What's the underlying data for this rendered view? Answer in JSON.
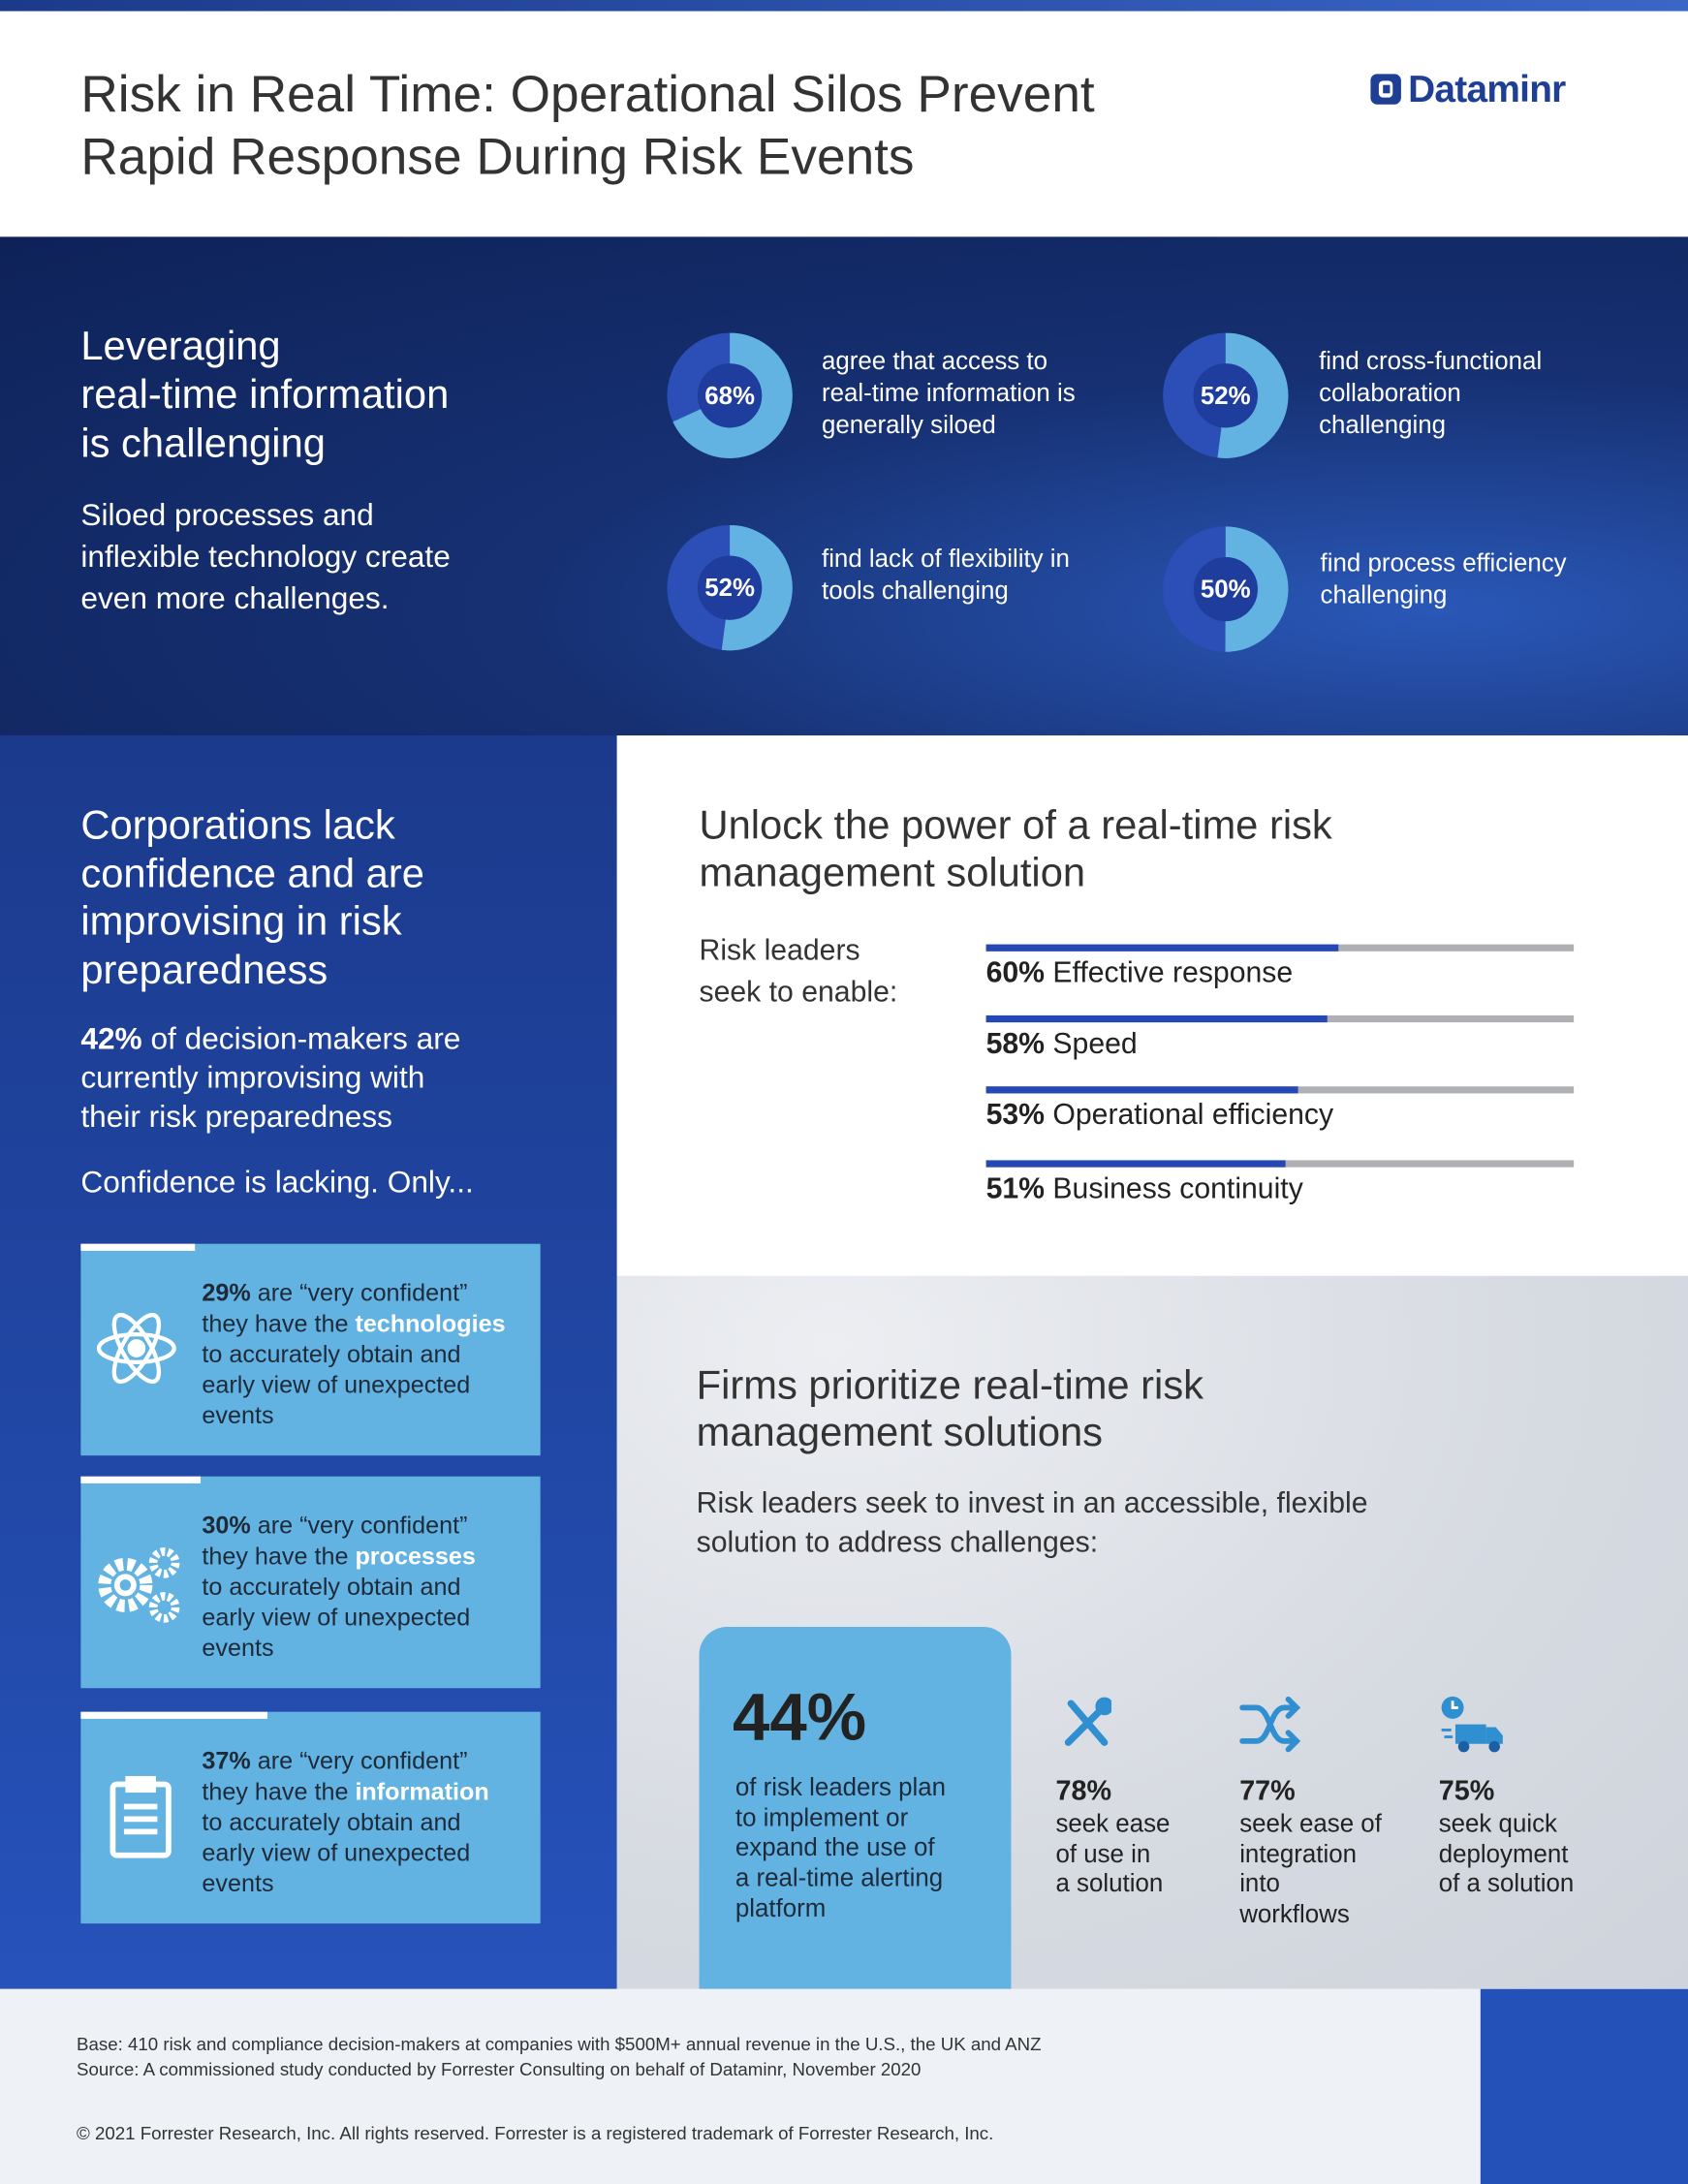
{
  "header": {
    "title": [
      "Risk in Real Time: Operational Silos Prevent",
      "Rapid Response During Risk Events"
    ],
    "logo": "Dataminr"
  },
  "intro": {
    "heading": [
      "Leveraging",
      "real-time information",
      "is challenging"
    ],
    "text": [
      "Siloed processes and",
      "inflexible technology create",
      "even more challenges."
    ],
    "stats": [
      {
        "value": 68,
        "label": "68%",
        "text": [
          "agree that access to",
          "real-time information is",
          "generally siloed"
        ]
      },
      {
        "value": 52,
        "label": "52%",
        "text": [
          "find cross-functional",
          "collaboration",
          "challenging"
        ]
      },
      {
        "value": 52,
        "label": "52%",
        "text": [
          "find lack of flexibility in",
          "tools challenging"
        ]
      },
      {
        "value": 50,
        "label": "50%",
        "text": [
          "find process efficiency",
          "challenging"
        ]
      }
    ]
  },
  "confidence": {
    "heading": [
      "Corporations lack",
      "confidence and are",
      "improvising in risk",
      "preparedness"
    ],
    "highlight": "42%",
    "text": [
      "of decision-makers are",
      "currently improvising with",
      "their risk preparedness"
    ],
    "lead": "Confidence is lacking. Only...",
    "cards": [
      {
        "value": "29%",
        "lines": [
          "are “very confident”",
          "they have the",
          "to accurately obtain and",
          "early view of unexpected",
          "events"
        ],
        "keyword": "technologies"
      },
      {
        "value": "30%",
        "lines": [
          "are “very confident”",
          "they have the",
          "to accurately obtain and",
          "early view of unexpected",
          "events"
        ],
        "keyword": "processes"
      },
      {
        "value": "37%",
        "lines": [
          "are “very confident”",
          "they have the",
          "to accurately obtain and",
          "early view of unexpected",
          "events"
        ],
        "keyword": "information"
      }
    ]
  },
  "unlock": {
    "heading": [
      "Unlock the power of a real-time risk",
      "management solution"
    ],
    "intro": [
      "Risk leaders",
      "seek to enable:"
    ],
    "bars": [
      {
        "value": 60,
        "label": "60%",
        "text": "Effective response"
      },
      {
        "value": 58,
        "label": "58%",
        "text": "Speed"
      },
      {
        "value": 53,
        "label": "53%",
        "text": "Operational efficiency"
      },
      {
        "value": 51,
        "label": "51%",
        "text": "Business continuity"
      }
    ]
  },
  "firms": {
    "heading": [
      "Firms prioritize real-time risk",
      "management solutions"
    ],
    "text": [
      "Risk leaders seek to invest in an accessible, flexible",
      "solution to address challenges:"
    ],
    "feature": {
      "value": "44%",
      "text": [
        "of risk leaders plan",
        "to implement or",
        "expand the use of",
        "a real-time alerting",
        "platform"
      ]
    },
    "stats": [
      {
        "value": "78%",
        "text": [
          "seek ease",
          "of use in",
          "a solution"
        ]
      },
      {
        "value": "77%",
        "text": [
          "seek ease of",
          "integration",
          "into",
          "workflows"
        ]
      },
      {
        "value": "75%",
        "text": [
          "seek quick",
          "deployment",
          "of a solution"
        ]
      }
    ]
  },
  "footer": {
    "base": "Base: 410 risk and compliance decision-makers at companies with $500M+ annual revenue in the U.S., the UK and ANZ",
    "source": "Source: A commissioned study conducted by Forrester Consulting on behalf of Dataminr, November 2020",
    "copyright": "© 2021 Forrester Research, Inc. All rights reserved. Forrester is a registered trademark of Forrester Research, Inc."
  }
}
